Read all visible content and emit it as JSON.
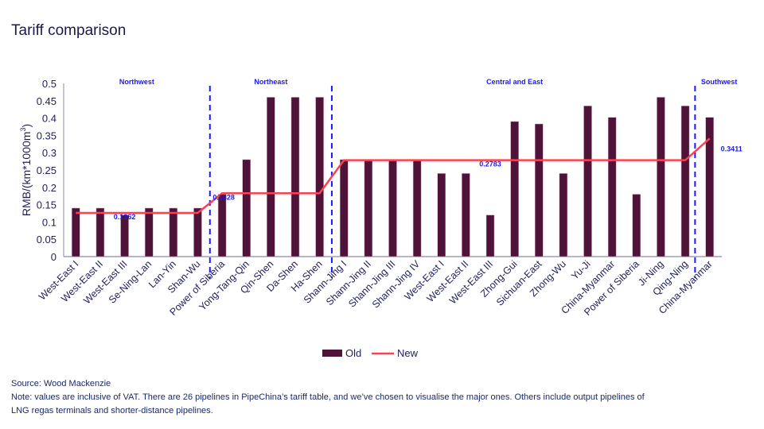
{
  "title": "Tariff comparison",
  "chart_data": {
    "type": "bar",
    "ylabel": "RMB/(km*1000m3)",
    "ylim": [
      0,
      0.5
    ],
    "yticks": [
      "0",
      "0.05",
      "0.1",
      "0.15",
      "0.2",
      "0.25",
      "0.3",
      "0.35",
      "0.4",
      "0.45",
      "0.5"
    ],
    "grid": false,
    "legend_position": "bottom",
    "categories": [
      "West-East I",
      "West-East II",
      "West-East III",
      "Se-Ning-Lan",
      "Lan-Yin",
      "Shan-Wu",
      "Power of Siberia",
      "Yong-Tang-Qin",
      "Qin-Shen",
      "Da-Shen",
      "Ha-Shen",
      "Shann-Jing I",
      "Shann-Jing II",
      "Shann-Jing III",
      "Shann-Jing IV",
      "West-East I",
      "West-East II",
      "West-East III",
      "Zhong-Gui",
      "Sichuan-East",
      "Zhong-Wu",
      "Yu-Ji",
      "China-Myanmar",
      "Power of Siberia",
      "Ji-Ning",
      "Qing-Ning",
      "China-Myanmar"
    ],
    "series": [
      {
        "name": "Old",
        "type": "bar",
        "color": "#4f1238",
        "values": [
          0.14,
          0.14,
          0.12,
          0.14,
          0.14,
          0.14,
          0.18,
          0.28,
          0.46,
          0.46,
          0.46,
          0.28,
          0.28,
          0.28,
          0.28,
          0.24,
          0.24,
          0.12,
          0.39,
          0.383,
          0.24,
          0.435,
          0.402,
          0.18,
          0.46,
          0.435,
          0.402
        ]
      },
      {
        "name": "New",
        "type": "line",
        "color": "#ff4050",
        "values": [
          0.1262,
          0.1262,
          0.1262,
          0.1262,
          0.1262,
          0.1262,
          0.1828,
          0.1828,
          0.1828,
          0.1828,
          0.1828,
          0.2783,
          0.2783,
          0.2783,
          0.2783,
          0.2783,
          0.2783,
          0.2783,
          0.2783,
          0.2783,
          0.2783,
          0.2783,
          0.2783,
          0.2783,
          0.2783,
          0.2783,
          0.3411
        ]
      }
    ],
    "annotations": [
      {
        "text": "0.1262",
        "category_index": 2,
        "value": 0.1262
      },
      {
        "text": "0.1828",
        "category_index": 6,
        "value": 0.1828
      },
      {
        "text": "0.2783",
        "category_index": 17,
        "value": 0.2783
      },
      {
        "text": "0.3411",
        "category_index": 26,
        "value": 0.3411
      }
    ],
    "regions": [
      {
        "label": "Northwest",
        "start": 0,
        "end": 5
      },
      {
        "label": "Northeast",
        "start": 6,
        "end": 10
      },
      {
        "label": "Central and East",
        "start": 11,
        "end": 25
      },
      {
        "label": "Southwest",
        "start": 26,
        "end": 26
      }
    ],
    "region_color": "#1a1aff"
  },
  "footer": {
    "source": "Source: Wood Mackenzie",
    "note_line1": "Note:  values are inclusive of VAT.  There are 26 pipelines in PipeChina’s tariff table, and we’ve chosen to visualise the major ones. Others include output pipelines of",
    "note_line2": "LNG  regas terminals and shorter-distance pipelines."
  }
}
